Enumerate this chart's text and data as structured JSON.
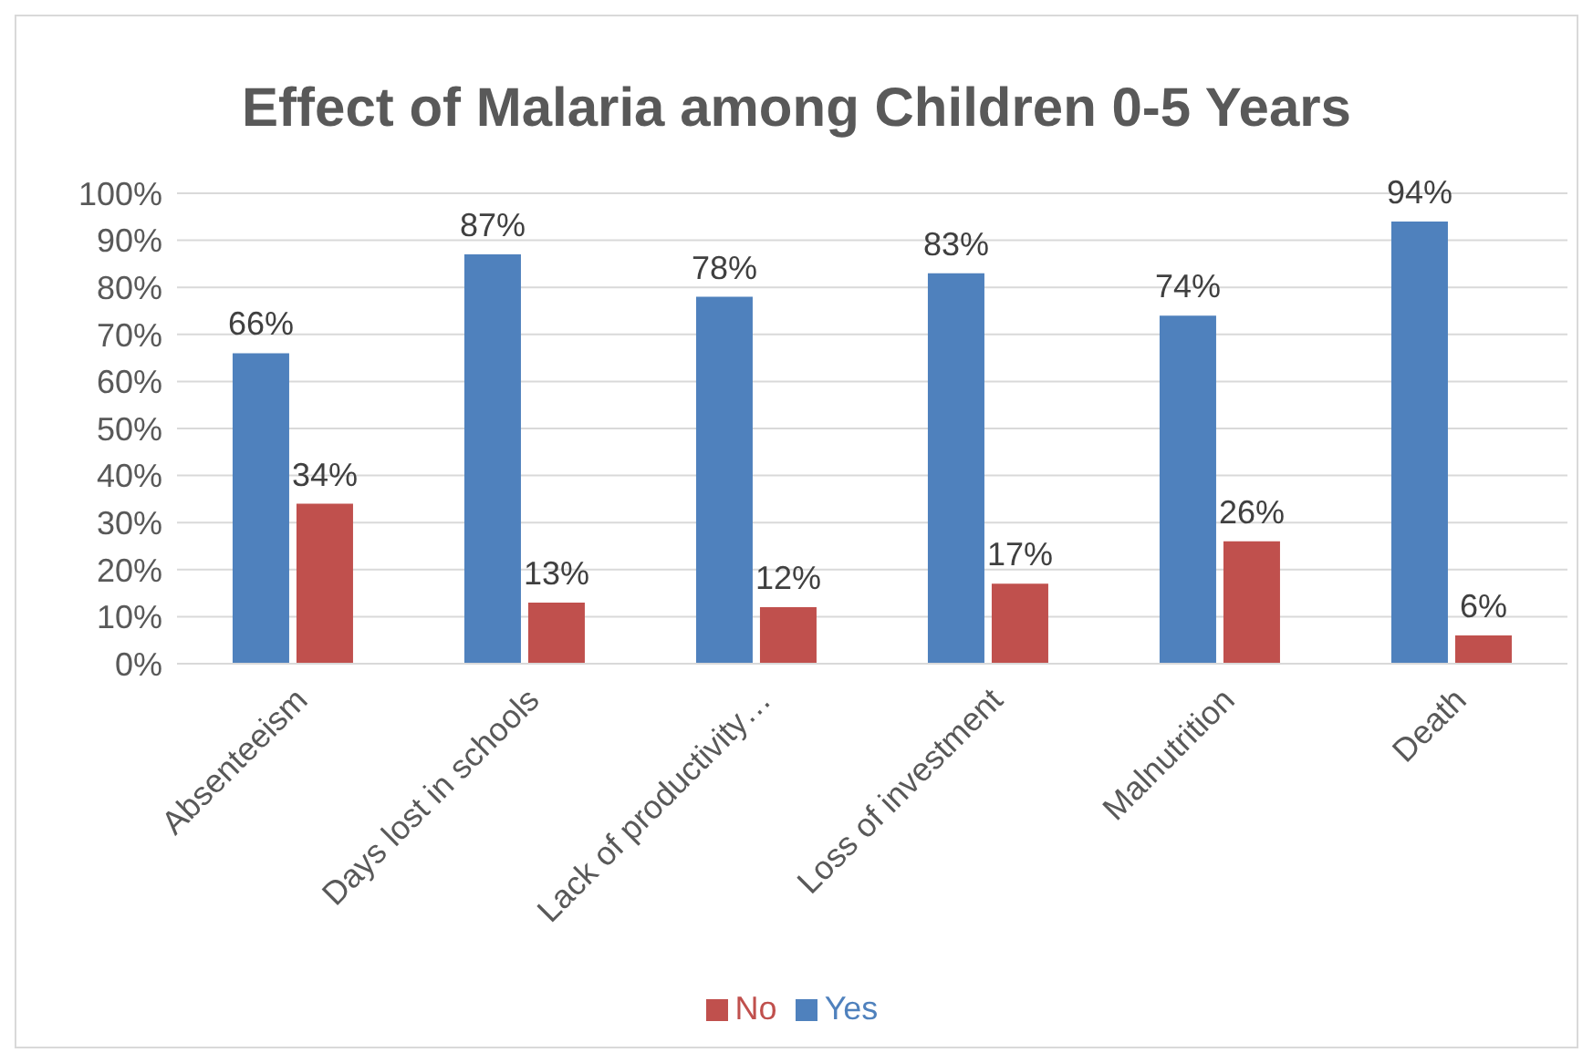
{
  "chart_data": {
    "type": "bar",
    "title": "Effect of Malaria among Children 0-5 Years",
    "categories": [
      "Absenteeism",
      "Days lost in schools",
      "Lack of productivity…",
      "Loss of investment",
      "Malnutrition",
      "Death"
    ],
    "series": [
      {
        "name": "Yes",
        "color": "#4f81bd",
        "values": [
          66,
          87,
          78,
          83,
          74,
          94
        ],
        "value_labels": [
          "66%",
          "87%",
          "78%",
          "83%",
          "74%",
          "94%"
        ]
      },
      {
        "name": "No",
        "color": "#c0504d",
        "values": [
          34,
          13,
          12,
          17,
          26,
          6
        ],
        "value_labels": [
          "34%",
          "13%",
          "12%",
          "17%",
          "26%",
          "6%"
        ]
      }
    ],
    "ylim": [
      0,
      100
    ],
    "yticks": [
      {
        "value": 0,
        "label": "0%"
      },
      {
        "value": 10,
        "label": "10%"
      },
      {
        "value": 20,
        "label": "20%"
      },
      {
        "value": 30,
        "label": "30%"
      },
      {
        "value": 40,
        "label": "40%"
      },
      {
        "value": 50,
        "label": "50%"
      },
      {
        "value": 60,
        "label": "60%"
      },
      {
        "value": 70,
        "label": "70%"
      },
      {
        "value": 80,
        "label": "80%"
      },
      {
        "value": 90,
        "label": "90%"
      },
      {
        "value": 100,
        "label": "100%"
      }
    ],
    "grid": "y",
    "legend": "bottom"
  }
}
